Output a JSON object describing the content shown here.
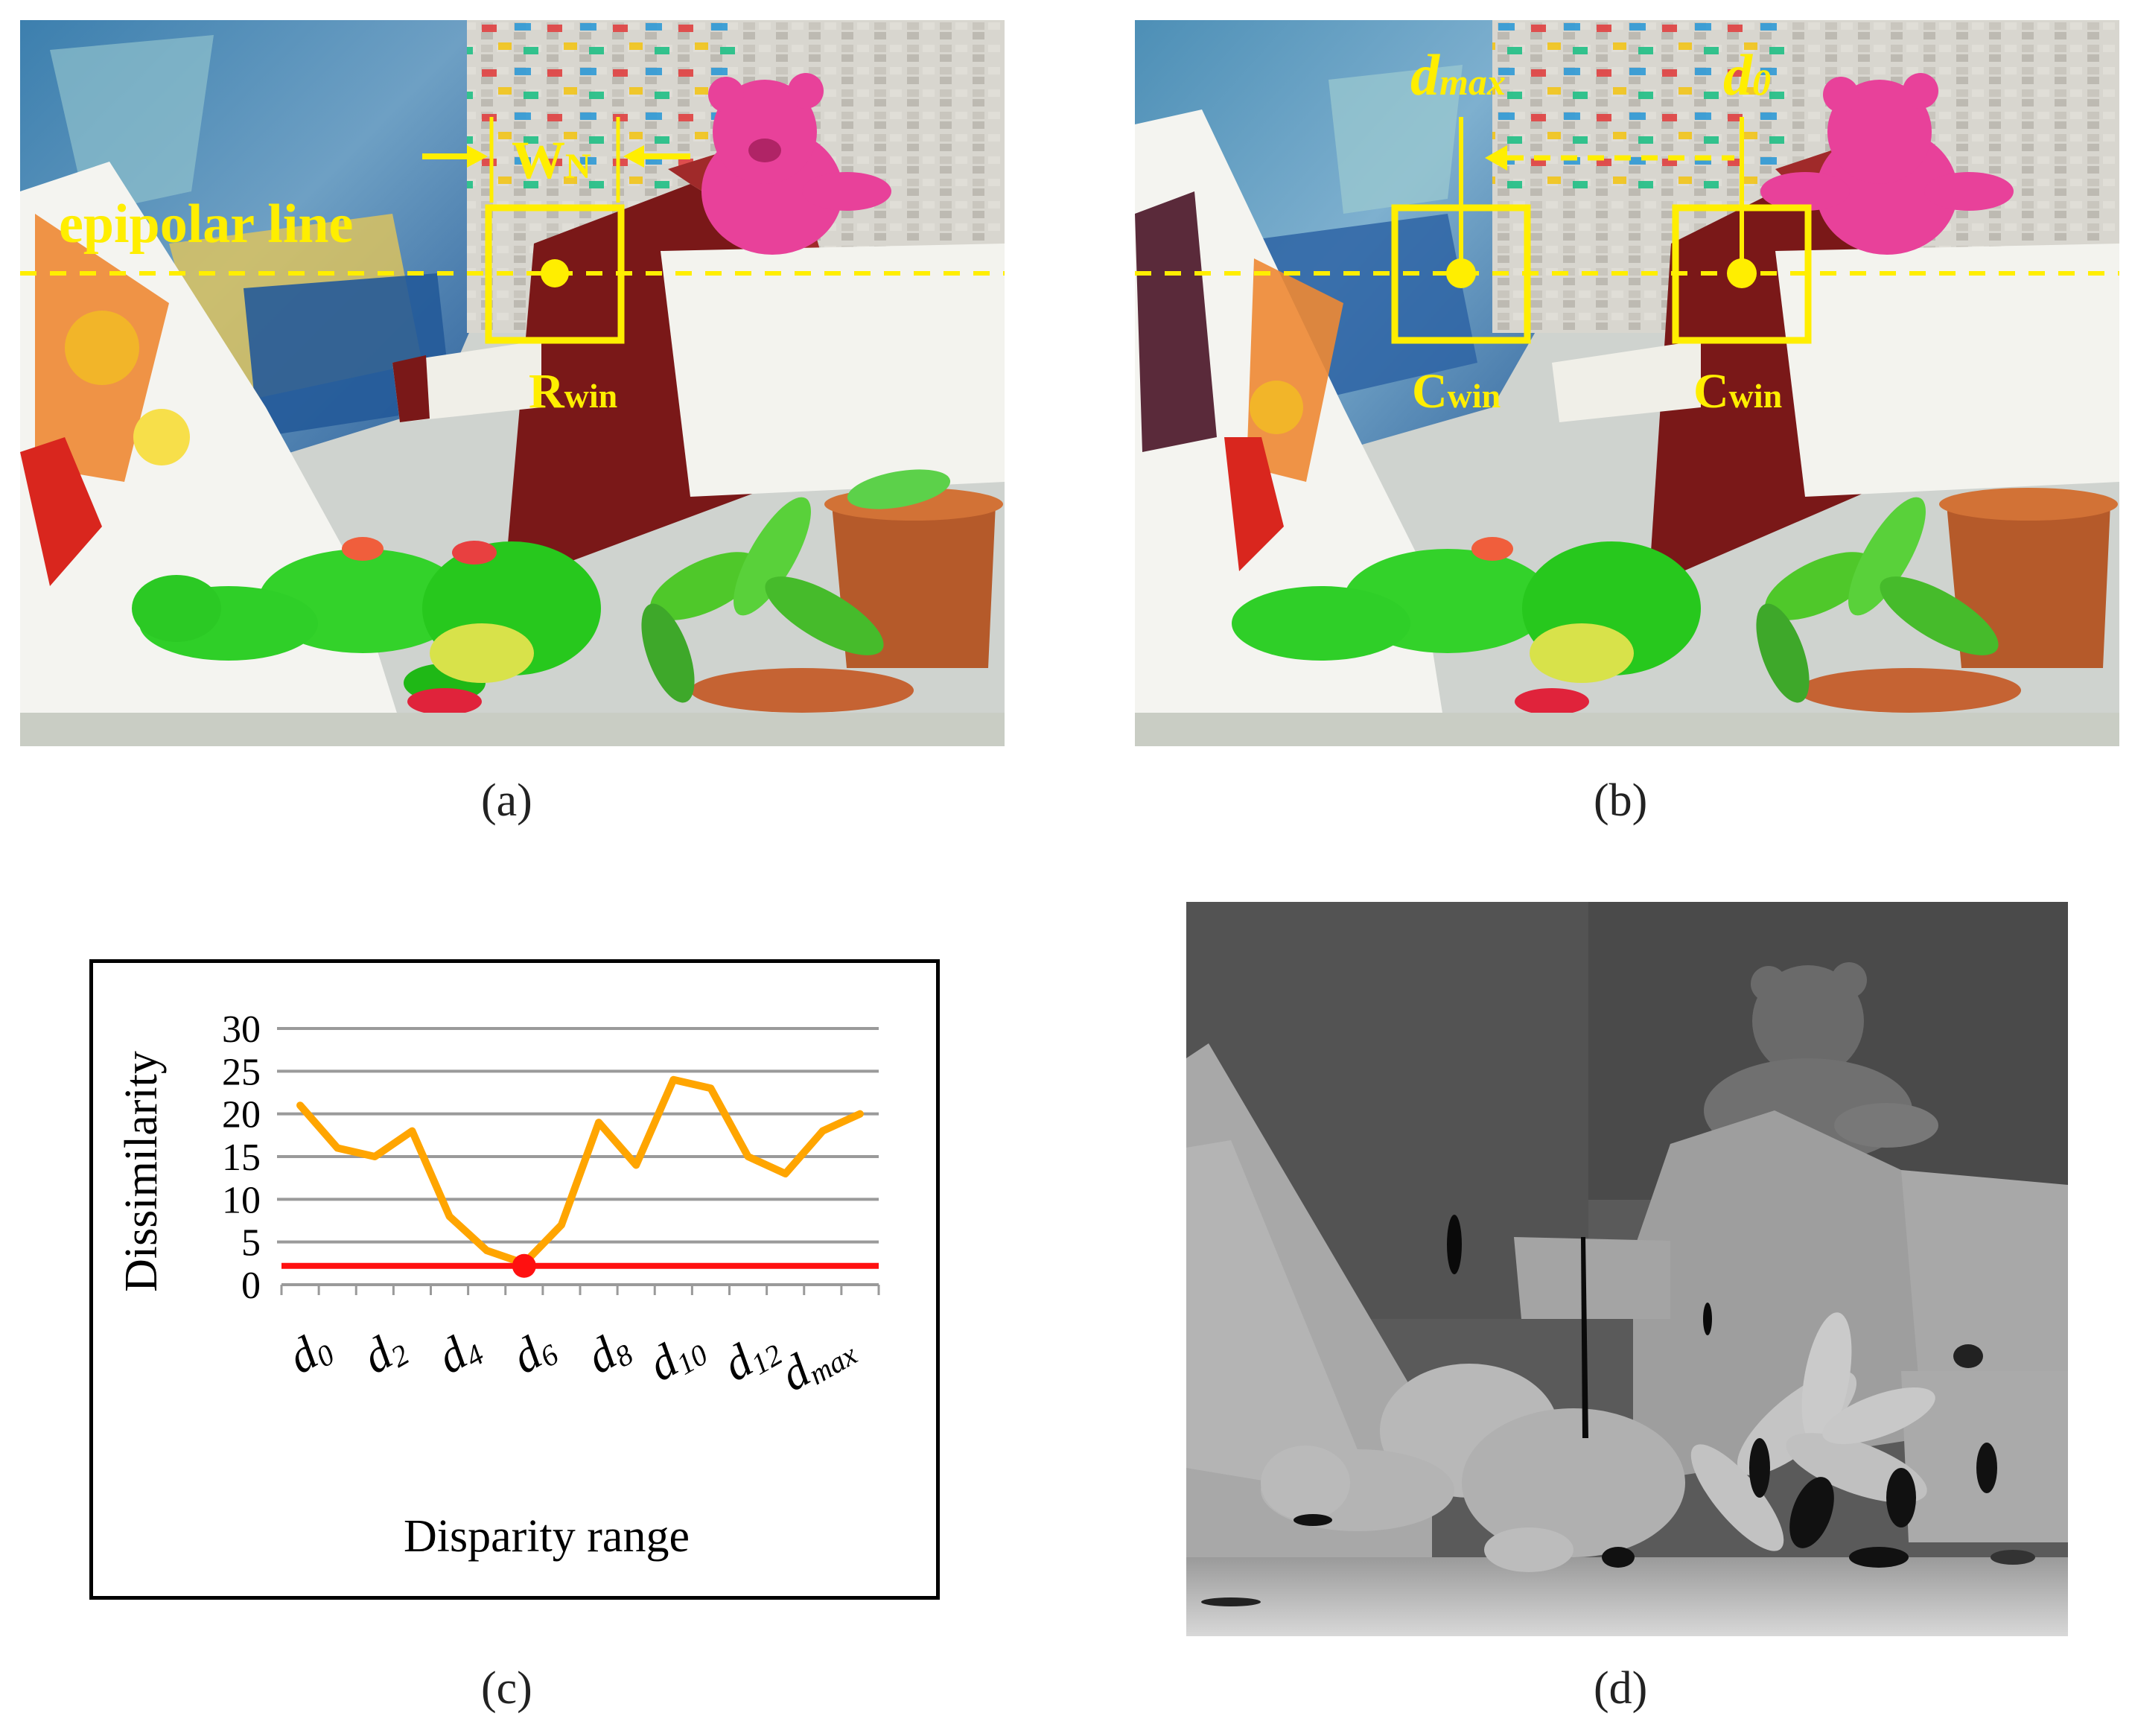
{
  "panel_a": {
    "caption": "(a)",
    "epipolar_label": "epipolar line",
    "window_width_main": "W",
    "window_width_sub": "N",
    "ref_window_main": "R",
    "ref_window_sub": "win"
  },
  "panel_b": {
    "caption": "(b)",
    "dmax_main": "d",
    "dmax_sub": "max",
    "d0_main": "d",
    "d0_sub": "0",
    "cand_window_main": "C",
    "cand_window_sub": "win"
  },
  "panel_c": {
    "caption": "(c)"
  },
  "panel_d": {
    "caption": "(d)"
  },
  "colors": {
    "annotation_yellow": "#ffee00",
    "curve_orange": "#ffa500",
    "threshold_red": "#ff1010",
    "grid_gray": "#9a9a9a"
  },
  "chart_data": {
    "type": "line",
    "ylabel": "Dissimilarity",
    "xlabel": "Disparity range",
    "ylim": [
      0,
      30
    ],
    "y_ticks": [
      "0",
      "5",
      "10",
      "15",
      "20",
      "25",
      "30"
    ],
    "grid": true,
    "x_tick_labels": [
      {
        "main": "d",
        "sub": "0"
      },
      {
        "main": "d",
        "sub": "2"
      },
      {
        "main": "d",
        "sub": "4"
      },
      {
        "main": "d",
        "sub": "6"
      },
      {
        "main": "d",
        "sub": "8"
      },
      {
        "main": "d",
        "sub": "10"
      },
      {
        "main": "d",
        "sub": "12"
      },
      {
        "main": "d",
        "sub": "max"
      }
    ],
    "series": [
      {
        "values": [
          21,
          16,
          15,
          18,
          8,
          4,
          2.5,
          7,
          19,
          14,
          24,
          23,
          15,
          13,
          18,
          20
        ]
      }
    ],
    "threshold": 2.2,
    "minimum_index": 6
  }
}
